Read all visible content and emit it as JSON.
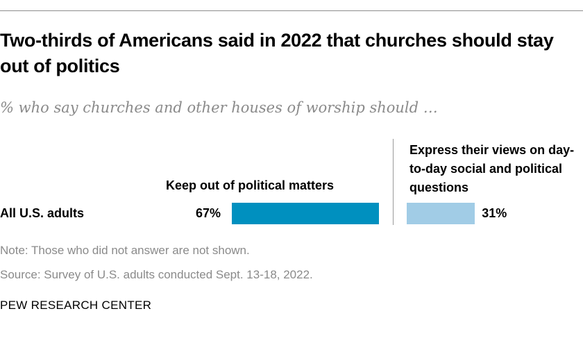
{
  "title": "Two-thirds of Americans said in 2022 that churches should stay out of politics",
  "subtitle": "% who say churches and other houses of worship should …",
  "note": "Note: Those who did not answer are not shown.",
  "source": "Source: Survey of U.S. adults conducted Sept. 13-18, 2022.",
  "brand": "PEW RESEARCH CENTER",
  "chart_data": {
    "type": "bar",
    "categories": [
      "All U.S. adults"
    ],
    "series": [
      {
        "name": "Keep out of political matters",
        "values": [
          67
        ],
        "label": "67%",
        "color": "#0090bf"
      },
      {
        "name": "Express their views on day-to-day social and political questions",
        "values": [
          31
        ],
        "label": "31%",
        "color": "#a1cce6"
      }
    ],
    "xlim": [
      0,
      100
    ]
  }
}
